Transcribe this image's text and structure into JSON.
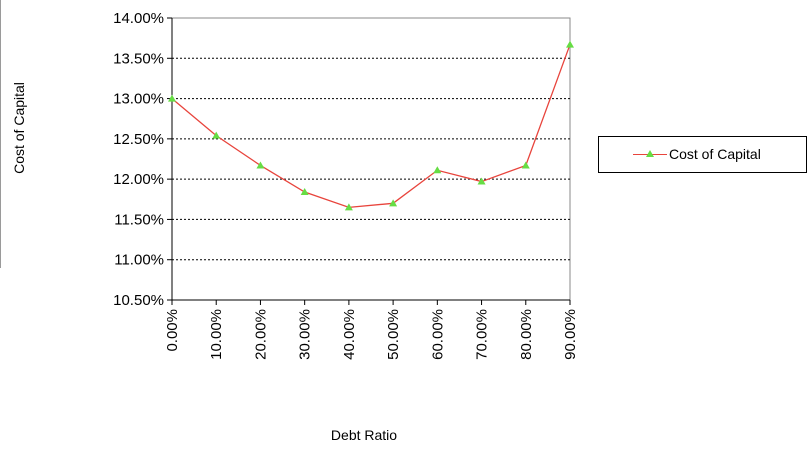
{
  "chart_data": {
    "type": "line",
    "xlabel": "Debt Ratio",
    "ylabel": "Cost of Capital",
    "categories": [
      "0.00%",
      "10.00%",
      "20.00%",
      "30.00%",
      "40.00%",
      "50.00%",
      "60.00%",
      "70.00%",
      "80.00%",
      "90.00%"
    ],
    "series": [
      {
        "name": "Cost of Capital",
        "values": [
          13.0,
          12.54,
          12.17,
          11.84,
          11.65,
          11.7,
          12.11,
          11.97,
          12.17,
          13.67
        ],
        "line_color": "#e8443c",
        "marker_color": "#66dd44",
        "marker": "triangle"
      }
    ],
    "ylim": [
      10.5,
      14.0
    ],
    "yticks": [
      10.5,
      11.0,
      11.5,
      12.0,
      12.5,
      13.0,
      13.5,
      14.0
    ],
    "ytick_labels": [
      "10.50%",
      "11.00%",
      "11.50%",
      "12.00%",
      "12.50%",
      "13.00%",
      "13.50%",
      "14.00%"
    ],
    "grid": "horizontal dashed",
    "legend_position": "right"
  }
}
